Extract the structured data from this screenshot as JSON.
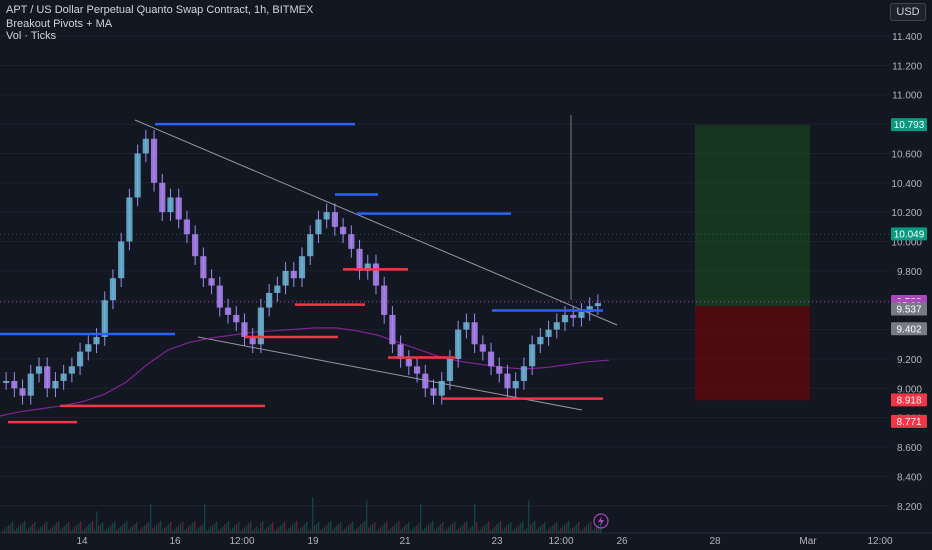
{
  "header": {
    "symbol_title": "APT / US Dollar Perpetual Quanto Swap Contract, 1h, BITMEX",
    "indicator_1": "Breakout Pivots + MA",
    "indicator_2": "Vol · Ticks",
    "currency": "USD"
  },
  "colors": {
    "background": "#131722",
    "bull_candle": "#8c7ae6",
    "bear_candle": "#8c7ae6",
    "resistance_line": "#2962ff",
    "support_line": "#f23645",
    "ma_line": "#9c27b0",
    "target_zone": "#1b5e20",
    "stop_zone": "#7f0000",
    "trendline": "#9598a1"
  },
  "chart_data": {
    "type": "candlestick",
    "title": "APT / US Dollar Perpetual Quanto Swap Contract, 1h, BITMEX",
    "y_axis": {
      "ticks": [
        8.2,
        8.4,
        8.6,
        8.8,
        9.0,
        9.2,
        9.4,
        9.6,
        9.8,
        10.0,
        10.2,
        10.4,
        10.6,
        10.8,
        11.0,
        11.2,
        11.4
      ],
      "tick_labels": [
        "8.200",
        "8.400",
        "8.600",
        "8.800",
        "9.000",
        "9.200",
        "9.400",
        "9.600",
        "9.800",
        "10.000",
        "10.200",
        "10.400",
        "10.600",
        "10.800",
        "11.000",
        "11.200",
        "11.400"
      ],
      "ylim": [
        8.06,
        11.56
      ]
    },
    "x_axis": {
      "tick_labels": [
        "14",
        "16",
        "12:00",
        "19",
        "21",
        "23",
        "12:00",
        "26",
        "28",
        "Mar",
        "12:00"
      ]
    },
    "price_labels": [
      {
        "text": "10.793",
        "value": 10.793,
        "color": "#089981"
      },
      {
        "text": "10.049",
        "value": 10.049,
        "color": "#089981"
      },
      {
        "text": "9.588",
        "value": 9.588,
        "color": "#ab47bc"
      },
      {
        "text": "35:29",
        "value": 9.56,
        "color": "#ab47bc"
      },
      {
        "text": "9.537",
        "value": 9.537,
        "color": "#787b86"
      },
      {
        "text": "9.402",
        "value": 9.402,
        "color": "#787b86"
      },
      {
        "text": "8.918",
        "value": 8.918,
        "color": "#f23645"
      },
      {
        "text": "8.771",
        "value": 8.771,
        "color": "#f23645"
      }
    ],
    "close_series": [
      9.05,
      9.0,
      8.95,
      9.1,
      9.15,
      9.0,
      9.05,
      9.1,
      9.15,
      9.25,
      9.3,
      9.35,
      9.6,
      9.75,
      10.0,
      10.3,
      10.6,
      10.7,
      10.4,
      10.2,
      10.3,
      10.15,
      10.05,
      9.9,
      9.75,
      9.7,
      9.55,
      9.5,
      9.45,
      9.35,
      9.3,
      9.55,
      9.65,
      9.7,
      9.8,
      9.75,
      9.9,
      10.05,
      10.15,
      10.2,
      10.1,
      10.05,
      9.95,
      9.8,
      9.85,
      9.7,
      9.5,
      9.3,
      9.2,
      9.15,
      9.1,
      9.0,
      8.95,
      9.05,
      9.2,
      9.4,
      9.45,
      9.3,
      9.25,
      9.15,
      9.1,
      9.0,
      9.05,
      9.15,
      9.3,
      9.35,
      9.4,
      9.45,
      9.5,
      9.48,
      9.52,
      9.56,
      9.58
    ],
    "ma_series": [
      9.05,
      9.08,
      9.1,
      9.12,
      9.15,
      9.2,
      9.28,
      9.4,
      9.5,
      9.55,
      9.58,
      9.6,
      9.62,
      9.63,
      9.64,
      9.65,
      9.65,
      9.63,
      9.6,
      9.55,
      9.5,
      9.45,
      9.42,
      9.4,
      9.38,
      9.37,
      9.38,
      9.4,
      9.42,
      9.43
    ],
    "resistance_levels": [
      {
        "value": 9.37,
        "x0": 0,
        "x1": 175
      },
      {
        "value": 10.8,
        "x0": 155,
        "x1": 355
      },
      {
        "value": 10.32,
        "x0": 335,
        "x1": 378
      },
      {
        "value": 10.19,
        "x0": 357,
        "x1": 511
      },
      {
        "value": 9.53,
        "x0": 492,
        "x1": 603
      }
    ],
    "support_levels": [
      {
        "value": 8.77,
        "x0": 8,
        "x1": 77
      },
      {
        "value": 8.88,
        "x0": 60,
        "x1": 265
      },
      {
        "value": 9.35,
        "x0": 245,
        "x1": 338
      },
      {
        "value": 9.57,
        "x0": 295,
        "x1": 365
      },
      {
        "value": 9.81,
        "x0": 343,
        "x1": 408
      },
      {
        "value": 9.21,
        "x0": 388,
        "x1": 456
      },
      {
        "value": 8.93,
        "x0": 441,
        "x1": 603
      }
    ],
    "volume_peaks": [
      8.6,
      8.4,
      8.3,
      8.3,
      8.65,
      8.2,
      8.25,
      8.3,
      8.3,
      8.25
    ]
  }
}
